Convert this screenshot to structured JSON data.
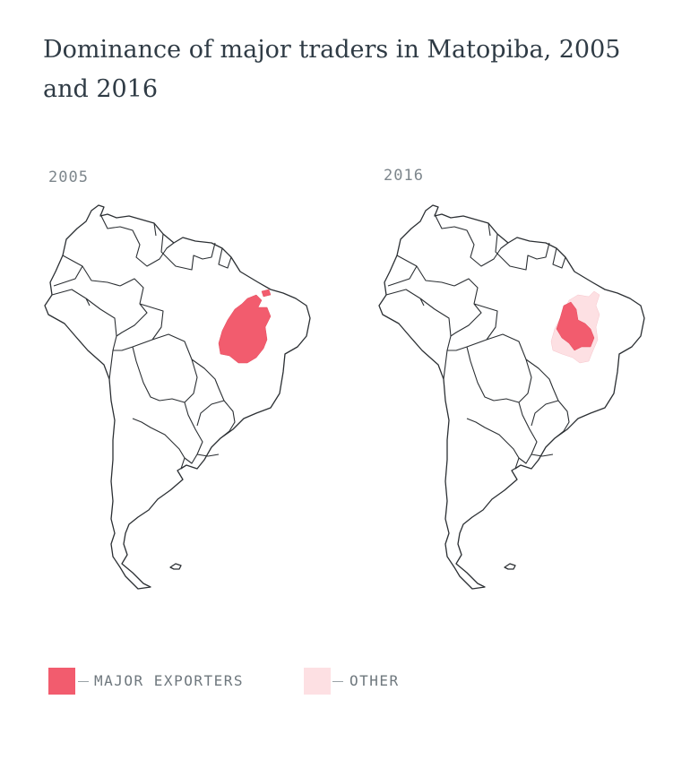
{
  "title": "Dominance of major traders in Matopiba, 2005 and 2016",
  "maps": [
    {
      "year": "2005"
    },
    {
      "year": "2016"
    }
  ],
  "legend": [
    {
      "label": "MAJOR EXPORTERS",
      "color": "#f25c6e"
    },
    {
      "label": "OTHER",
      "color": "#fde0e3"
    }
  ]
}
